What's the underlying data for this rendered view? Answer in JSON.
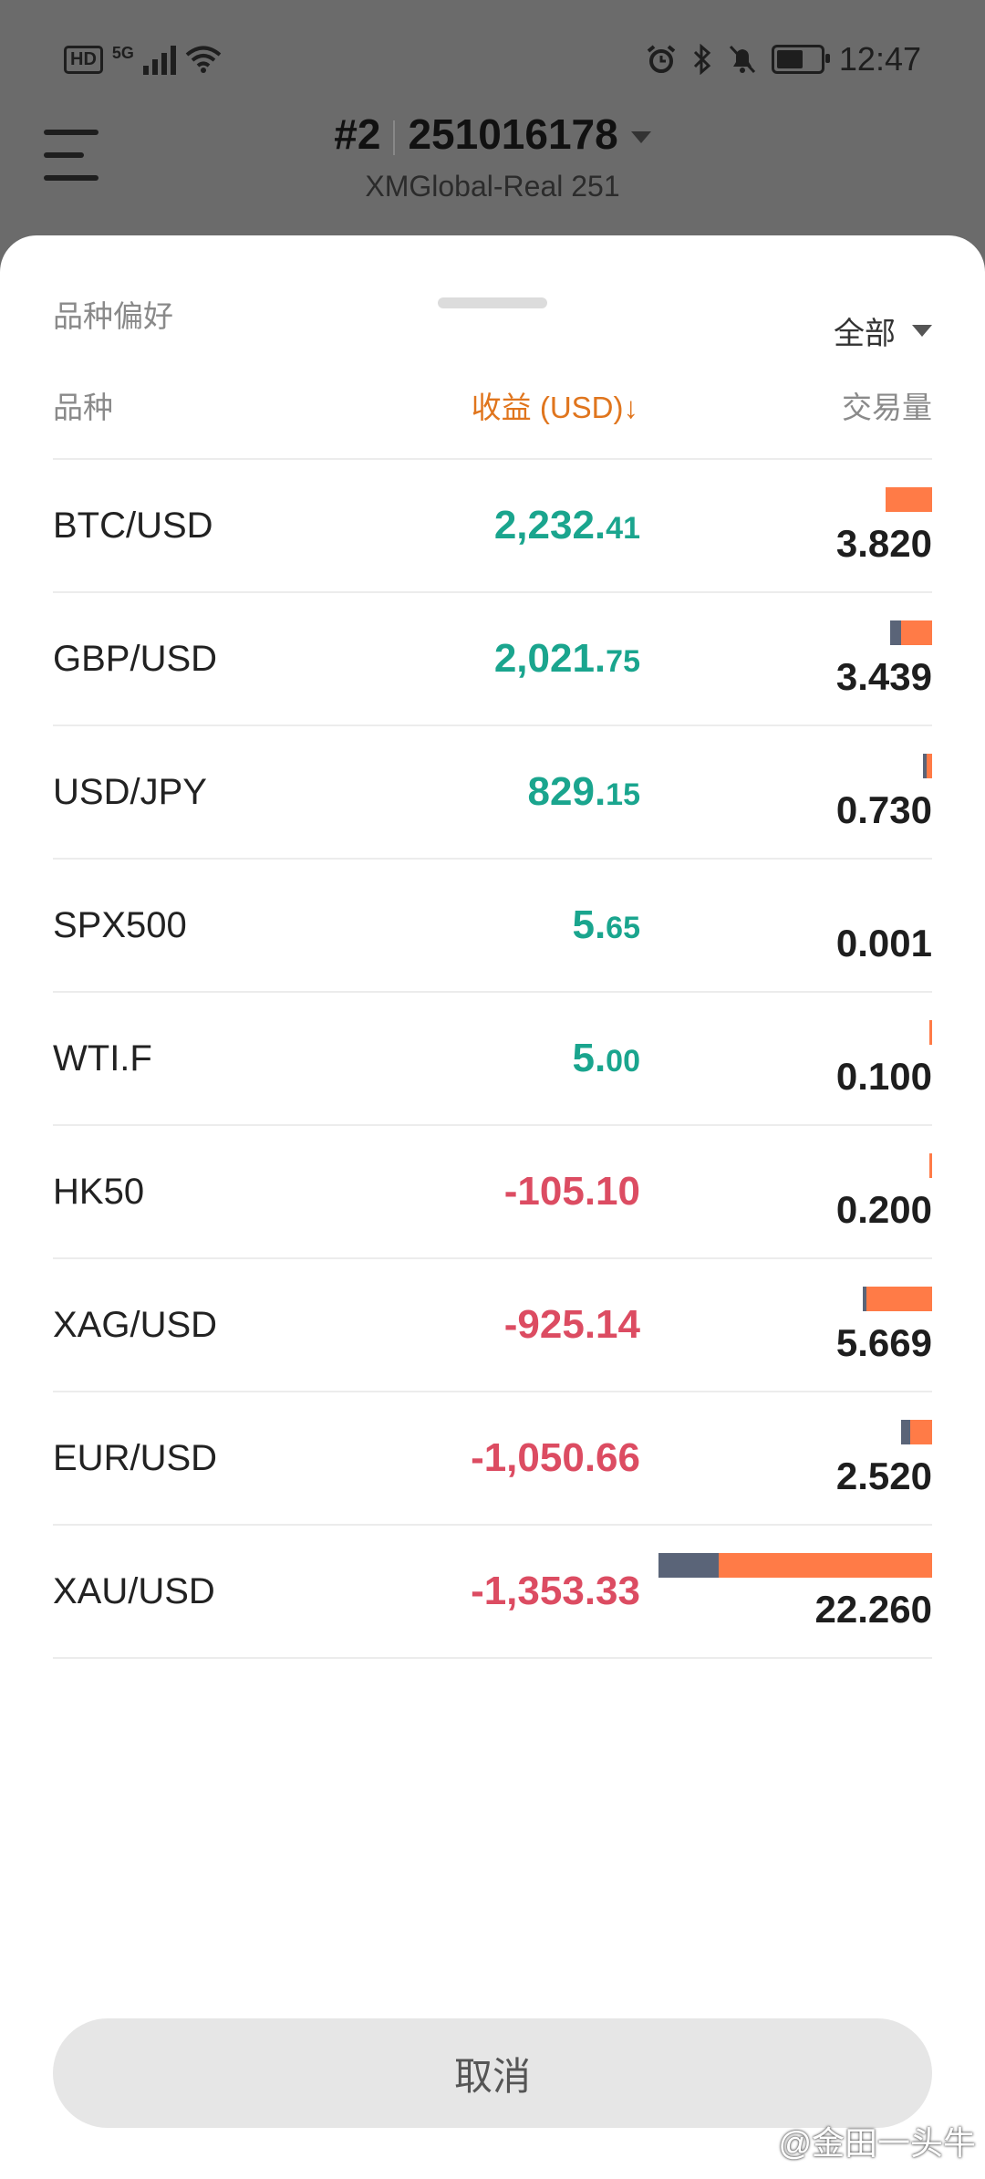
{
  "status_bar": {
    "hd": "HD",
    "network": "5G",
    "time": "12:47",
    "battery_level": 0.6,
    "icons": [
      "alarm-icon",
      "bluetooth-icon",
      "mute-icon"
    ]
  },
  "header": {
    "account_number": "#2",
    "account_id": "251016178",
    "server": "XMGlobal-Real 251"
  },
  "sheet": {
    "section_label": "品种偏好",
    "filter_label": "全部",
    "columns": {
      "symbol": "品种",
      "pnl": "收益 (USD)↓",
      "volume": "交易量"
    },
    "cancel_label": "取消",
    "rows": [
      {
        "symbol": "BTC/USD",
        "pnl_int": "2,232.",
        "pnl_frac": "41",
        "sign": "pos",
        "volume": "3.820",
        "vol_value": 3.82,
        "buy_share": 0.0
      },
      {
        "symbol": "GBP/USD",
        "pnl_int": "2,021.",
        "pnl_frac": "75",
        "sign": "pos",
        "volume": "3.439",
        "vol_value": 3.439,
        "buy_share": 0.26
      },
      {
        "symbol": "USD/JPY",
        "pnl_int": "829.",
        "pnl_frac": "15",
        "sign": "pos",
        "volume": "0.730",
        "vol_value": 0.73,
        "buy_share": 0.4
      },
      {
        "symbol": "SPX500",
        "pnl_int": "5.",
        "pnl_frac": "65",
        "sign": "pos",
        "volume": "0.001",
        "vol_value": 0.001,
        "buy_share": 0.0
      },
      {
        "symbol": "WTI.F",
        "pnl_int": "5.",
        "pnl_frac": "00",
        "sign": "pos",
        "volume": "0.100",
        "vol_value": 0.1,
        "buy_share": 0.0
      },
      {
        "symbol": "HK50",
        "pnl_int": "-105.10",
        "pnl_frac": "",
        "sign": "neg",
        "volume": "0.200",
        "vol_value": 0.2,
        "buy_share": 0.0
      },
      {
        "symbol": "XAG/USD",
        "pnl_int": "-925.14",
        "pnl_frac": "",
        "sign": "neg",
        "volume": "5.669",
        "vol_value": 5.669,
        "buy_share": 0.05
      },
      {
        "symbol": "EUR/USD",
        "pnl_int": "-1,050.66",
        "pnl_frac": "",
        "sign": "neg",
        "volume": "2.520",
        "vol_value": 2.52,
        "buy_share": 0.28
      },
      {
        "symbol": "XAU/USD",
        "pnl_int": "-1,353.33",
        "pnl_frac": "",
        "sign": "neg",
        "volume": "22.260",
        "vol_value": 22.26,
        "buy_share": 0.22
      }
    ]
  },
  "watermark": "@金田一头牛",
  "colors": {
    "positive": "#1aa58e",
    "negative": "#dc4c62",
    "accent": "#e0751d",
    "buy": "#5a6478",
    "sell": "#ff7b47"
  }
}
